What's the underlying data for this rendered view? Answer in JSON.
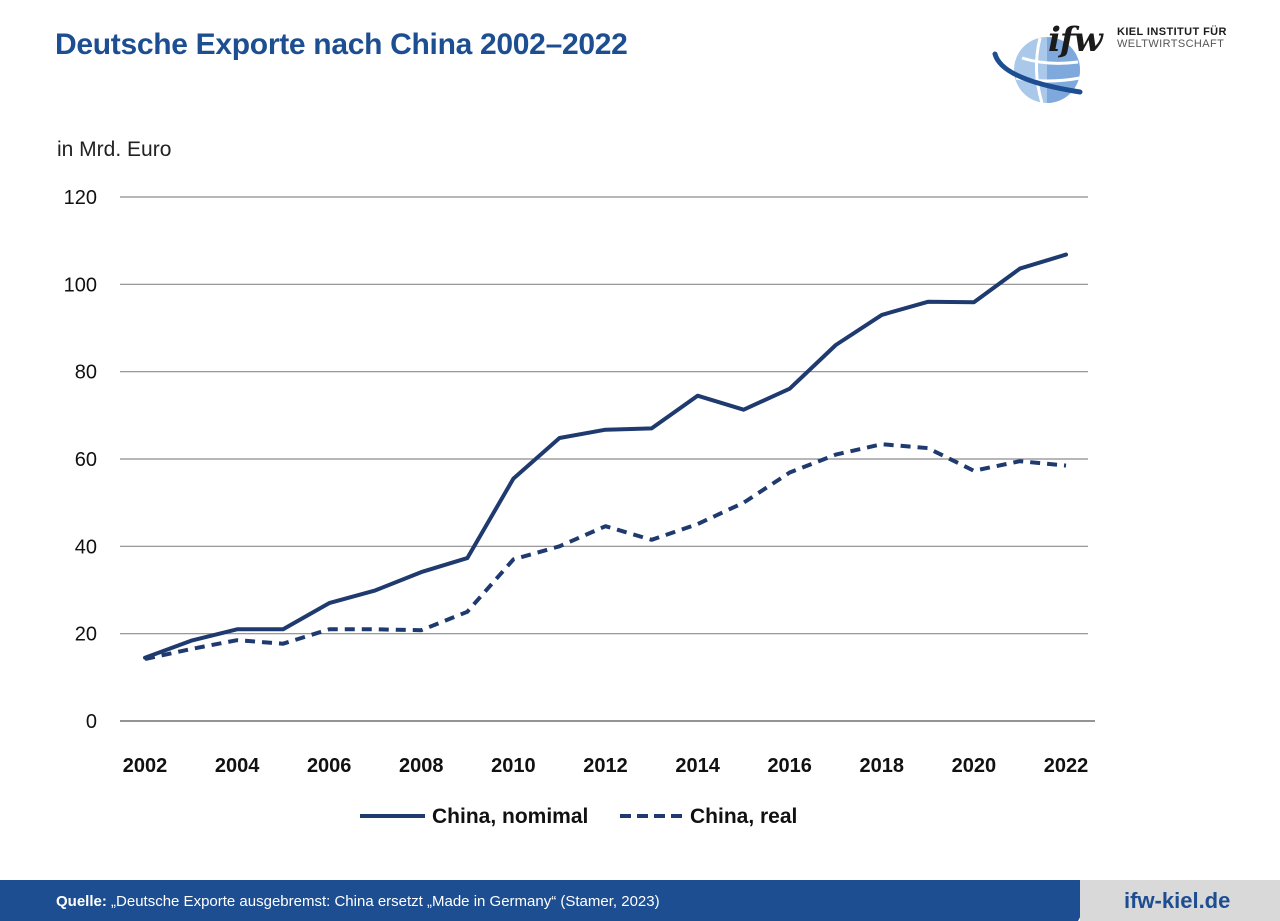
{
  "header": {
    "title": "Deutsche Exporte nach China 2002–2022"
  },
  "logo": {
    "word": "ifw",
    "line1": "KIEL INSTITUT FÜR",
    "line2": "WELTWIRTSCHAFT"
  },
  "chart_data": {
    "type": "line",
    "title": "Deutsche Exporte nach China 2002–2022",
    "ylabel": "in Mrd. Euro",
    "xlabel": "",
    "ylim": [
      0,
      120
    ],
    "yticks": [
      0,
      20,
      40,
      60,
      80,
      100,
      120
    ],
    "xlim": [
      2002,
      2022
    ],
    "xticks": [
      2002,
      2004,
      2006,
      2008,
      2010,
      2012,
      2014,
      2016,
      2018,
      2020,
      2022
    ],
    "grid": true,
    "legend_position": "bottom",
    "x": [
      2002,
      2003,
      2004,
      2005,
      2006,
      2007,
      2008,
      2009,
      2010,
      2011,
      2012,
      2013,
      2014,
      2015,
      2016,
      2017,
      2018,
      2019,
      2020,
      2021,
      2022
    ],
    "series": [
      {
        "name": "China, nomimal",
        "style": "solid",
        "color": "#1f3a6e",
        "values": [
          14.5,
          18.4,
          21.0,
          21.0,
          27.0,
          29.9,
          34.1,
          37.3,
          55.5,
          64.8,
          66.7,
          67.0,
          74.5,
          71.3,
          76.1,
          86.1,
          93.0,
          96.0,
          95.9,
          103.6,
          106.8
        ]
      },
      {
        "name": "China, real",
        "style": "dashed",
        "color": "#1f3a6e",
        "values": [
          14.2,
          16.5,
          18.5,
          17.7,
          21.0,
          21.0,
          20.8,
          25.0,
          37.0,
          40.0,
          44.6,
          41.5,
          45.1,
          50.0,
          56.9,
          61.0,
          63.4,
          62.5,
          57.3,
          59.5,
          58.5
        ]
      }
    ]
  },
  "footer": {
    "source_label": "Quelle:",
    "source_text": " „Deutsche Exporte ausgebremst: China ersetzt „Made in Germany“ (Stamer, 2023)",
    "site": "ifw-kiel.de"
  },
  "colors": {
    "brand_blue": "#1d4e91",
    "line": "#1f3a6e",
    "grid": "#8c8c8c",
    "footer_grey": "#d9d9d9"
  }
}
